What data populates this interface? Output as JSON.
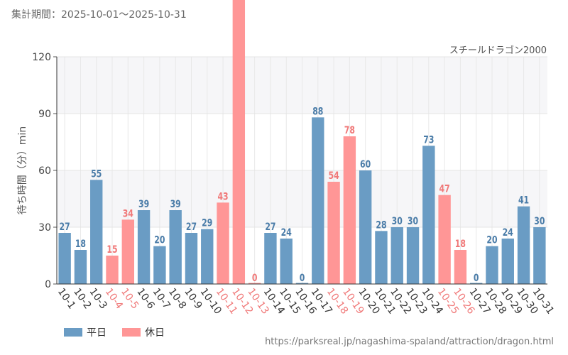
{
  "header": {
    "period": "集計期間：2025-10-01〜2025-10-31"
  },
  "footer": {
    "url": "https://parksreal.jp/nagashima-spaland/attraction/dragon.html"
  },
  "colors": {
    "weekday": "#6a9cc4",
    "holiday": "#ff9696",
    "weekday_label": "#4a7ca8",
    "holiday_label": "#f07878"
  },
  "chart_data": {
    "type": "bar",
    "title": "スチールドラゴン2000",
    "ylabel": "待ち時間（分）min",
    "ylim": [
      0,
      120
    ],
    "yticks": [
      0,
      30,
      60,
      90,
      120
    ],
    "categories": [
      "10-1",
      "10-2",
      "10-3",
      "10-4",
      "10-5",
      "10-6",
      "10-7",
      "10-8",
      "10-9",
      "10-10",
      "10-11",
      "10-12",
      "10-13",
      "10-14",
      "10-15",
      "10-16",
      "10-17",
      "10-18",
      "10-19",
      "10-20",
      "10-21",
      "10-22",
      "10-23",
      "10-24",
      "10-25",
      "10-26",
      "10-27",
      "10-28",
      "10-29",
      "10-30",
      "10-31"
    ],
    "values": [
      27,
      18,
      55,
      15,
      34,
      39,
      20,
      39,
      27,
      29,
      43,
      null,
      0,
      27,
      24,
      0,
      88,
      54,
      78,
      60,
      28,
      30,
      30,
      73,
      47,
      18,
      0,
      20,
      24,
      41,
      30
    ],
    "day_type": [
      "平日",
      "平日",
      "平日",
      "休日",
      "休日",
      "平日",
      "平日",
      "平日",
      "平日",
      "平日",
      "休日",
      "休日",
      "休日",
      "平日",
      "平日",
      "平日",
      "平日",
      "休日",
      "休日",
      "平日",
      "平日",
      "平日",
      "平日",
      "平日",
      "休日",
      "休日",
      "平日",
      "平日",
      "平日",
      "平日",
      "平日"
    ],
    "legend": [
      "平日",
      "休日"
    ]
  }
}
